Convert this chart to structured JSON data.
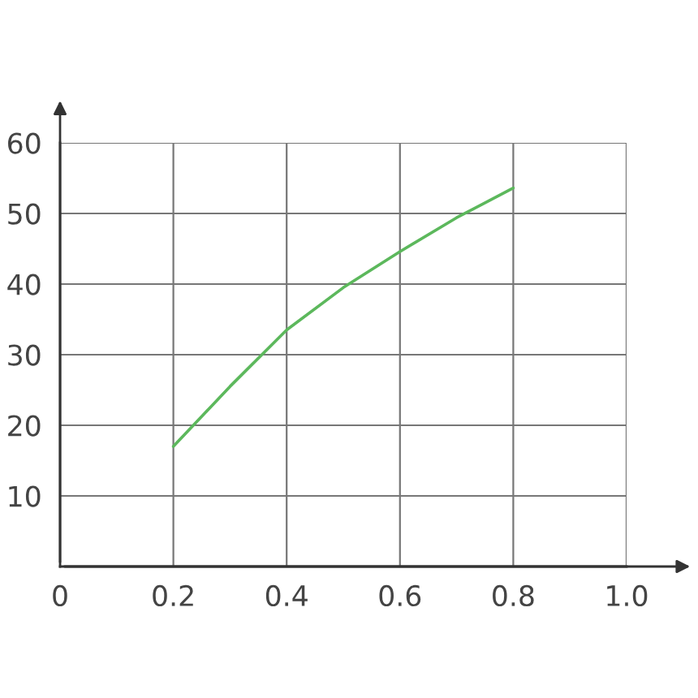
{
  "chart_data": {
    "type": "line",
    "x": [
      0.2,
      0.3,
      0.4,
      0.5,
      0.6,
      0.7,
      0.8
    ],
    "series": [
      {
        "color": "#5cb85c",
        "values": [
          17,
          25.5,
          33.5,
          39.5,
          44.6,
          49.4,
          53.6
        ]
      }
    ],
    "xlim": [
      0,
      1
    ],
    "ylim": [
      0,
      60
    ],
    "xticks": [
      {
        "value": 0,
        "label": "0"
      },
      0.2,
      0.4,
      0.6,
      0.8,
      {
        "value": 1,
        "label": "1.0"
      }
    ],
    "yticks": [
      10,
      20,
      30,
      40,
      50,
      60
    ],
    "grid": true,
    "marker": "none",
    "line_style": "solid"
  }
}
